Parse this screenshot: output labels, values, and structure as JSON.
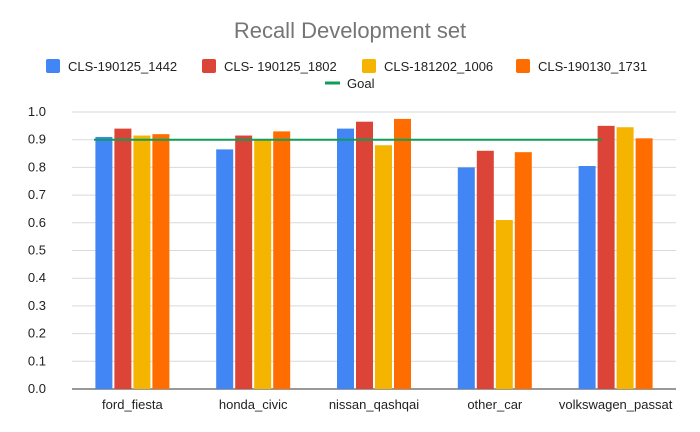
{
  "chart_data": {
    "type": "bar",
    "title": "Recall Development set",
    "xlabel": "",
    "ylabel": "",
    "ylim": [
      0,
      1.0
    ],
    "yticks": [
      "0.0",
      "0.1",
      "0.2",
      "0.3",
      "0.4",
      "0.5",
      "0.6",
      "0.7",
      "0.8",
      "0.9",
      "1.0"
    ],
    "categories": [
      "ford_fiesta",
      "honda_civic",
      "nissan_qashqai",
      "other_car",
      "volkswagen_passat"
    ],
    "series": [
      {
        "name": "CLS-190125_1442",
        "color": "#4285f4",
        "values": [
          0.91,
          0.865,
          0.94,
          0.8,
          0.805
        ]
      },
      {
        "name": "CLS- 190125_1802",
        "color": "#db4437",
        "values": [
          0.94,
          0.915,
          0.965,
          0.86,
          0.95
        ]
      },
      {
        "name": "CLS-181202_1006",
        "color": "#f4b400",
        "values": [
          0.915,
          0.9,
          0.88,
          0.61,
          0.945
        ]
      },
      {
        "name": "CLS-190130_1731",
        "color": "#ff6d00",
        "values": [
          0.92,
          0.93,
          0.975,
          0.855,
          0.905
        ]
      }
    ],
    "goal": {
      "name": "Goal",
      "value": 0.9,
      "color": "#0f9d58"
    },
    "legend_position": "top"
  }
}
